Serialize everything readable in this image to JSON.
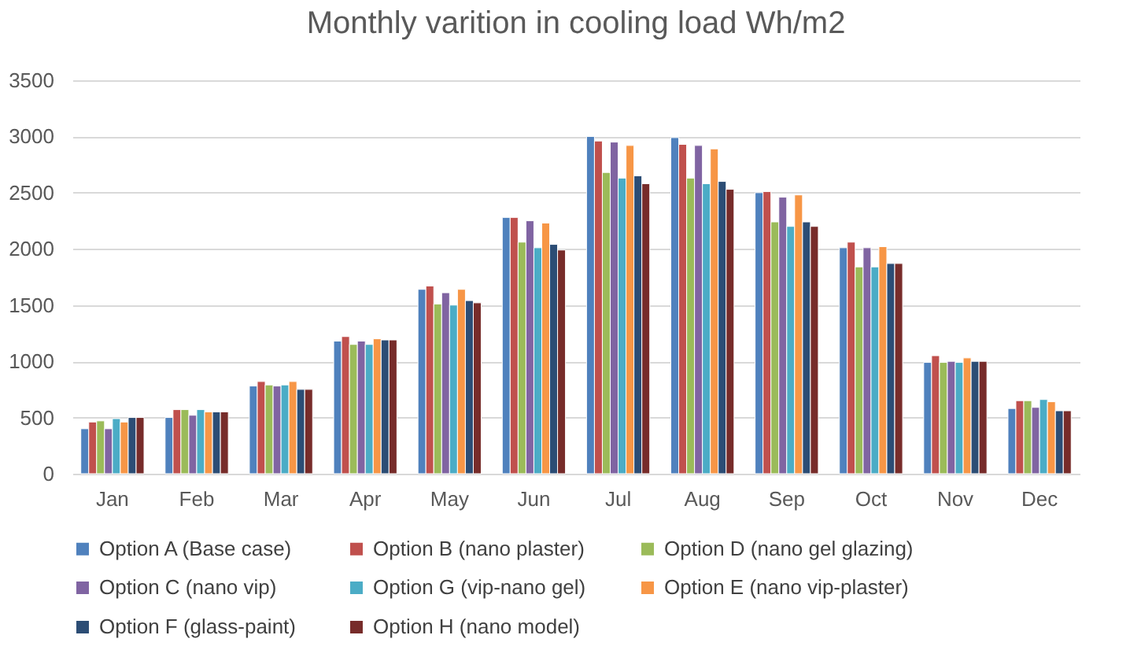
{
  "chart_data": {
    "type": "bar",
    "title": "Monthly varition in cooling load  Wh/m2",
    "categories": [
      "Jan",
      "Feb",
      "Mar",
      "Apr",
      "May",
      "Jun",
      "Jul",
      "Aug",
      "Sep",
      "Oct",
      "Nov",
      "Dec"
    ],
    "series": [
      {
        "name": "Option A (Base case)",
        "color": "#4f81bd",
        "values": [
          400,
          500,
          780,
          1180,
          1640,
          2280,
          3000,
          2990,
          2500,
          2010,
          990,
          580
        ]
      },
      {
        "name": "Option B (nano plaster)",
        "color": "#c0504d",
        "values": [
          460,
          570,
          820,
          1220,
          1670,
          2280,
          2960,
          2930,
          2510,
          2060,
          1050,
          650
        ]
      },
      {
        "name": "Option D (nano gel glazing)",
        "color": "#9bbb59",
        "values": [
          470,
          570,
          790,
          1150,
          1510,
          2060,
          2680,
          2630,
          2240,
          1840,
          990,
          650
        ]
      },
      {
        "name": "Option C (nano vip)",
        "color": "#8064a2",
        "values": [
          400,
          520,
          780,
          1180,
          1610,
          2250,
          2950,
          2920,
          2460,
          2010,
          1000,
          590
        ]
      },
      {
        "name": "Option G (vip-nano gel)",
        "color": "#4bacc6",
        "values": [
          490,
          570,
          790,
          1150,
          1500,
          2010,
          2630,
          2580,
          2200,
          1840,
          990,
          660
        ]
      },
      {
        "name": "Option E (nano vip-plaster)",
        "color": "#f79646",
        "values": [
          460,
          550,
          820,
          1200,
          1640,
          2230,
          2920,
          2890,
          2480,
          2020,
          1030,
          640
        ]
      },
      {
        "name": "Option F (glass-paint)",
        "color": "#2c4d75",
        "values": [
          500,
          550,
          750,
          1190,
          1540,
          2040,
          2650,
          2600,
          2240,
          1870,
          1000,
          560
        ]
      },
      {
        "name": "Option H (nano model)",
        "color": "#772c2a",
        "values": [
          500,
          550,
          750,
          1190,
          1520,
          1990,
          2580,
          2530,
          2200,
          1870,
          1000,
          560
        ]
      }
    ],
    "ylim": [
      0,
      3500
    ],
    "yticks": [
      0,
      500,
      1000,
      1500,
      2000,
      2500,
      3000,
      3500
    ],
    "grid": "y",
    "legend": "bottom"
  }
}
